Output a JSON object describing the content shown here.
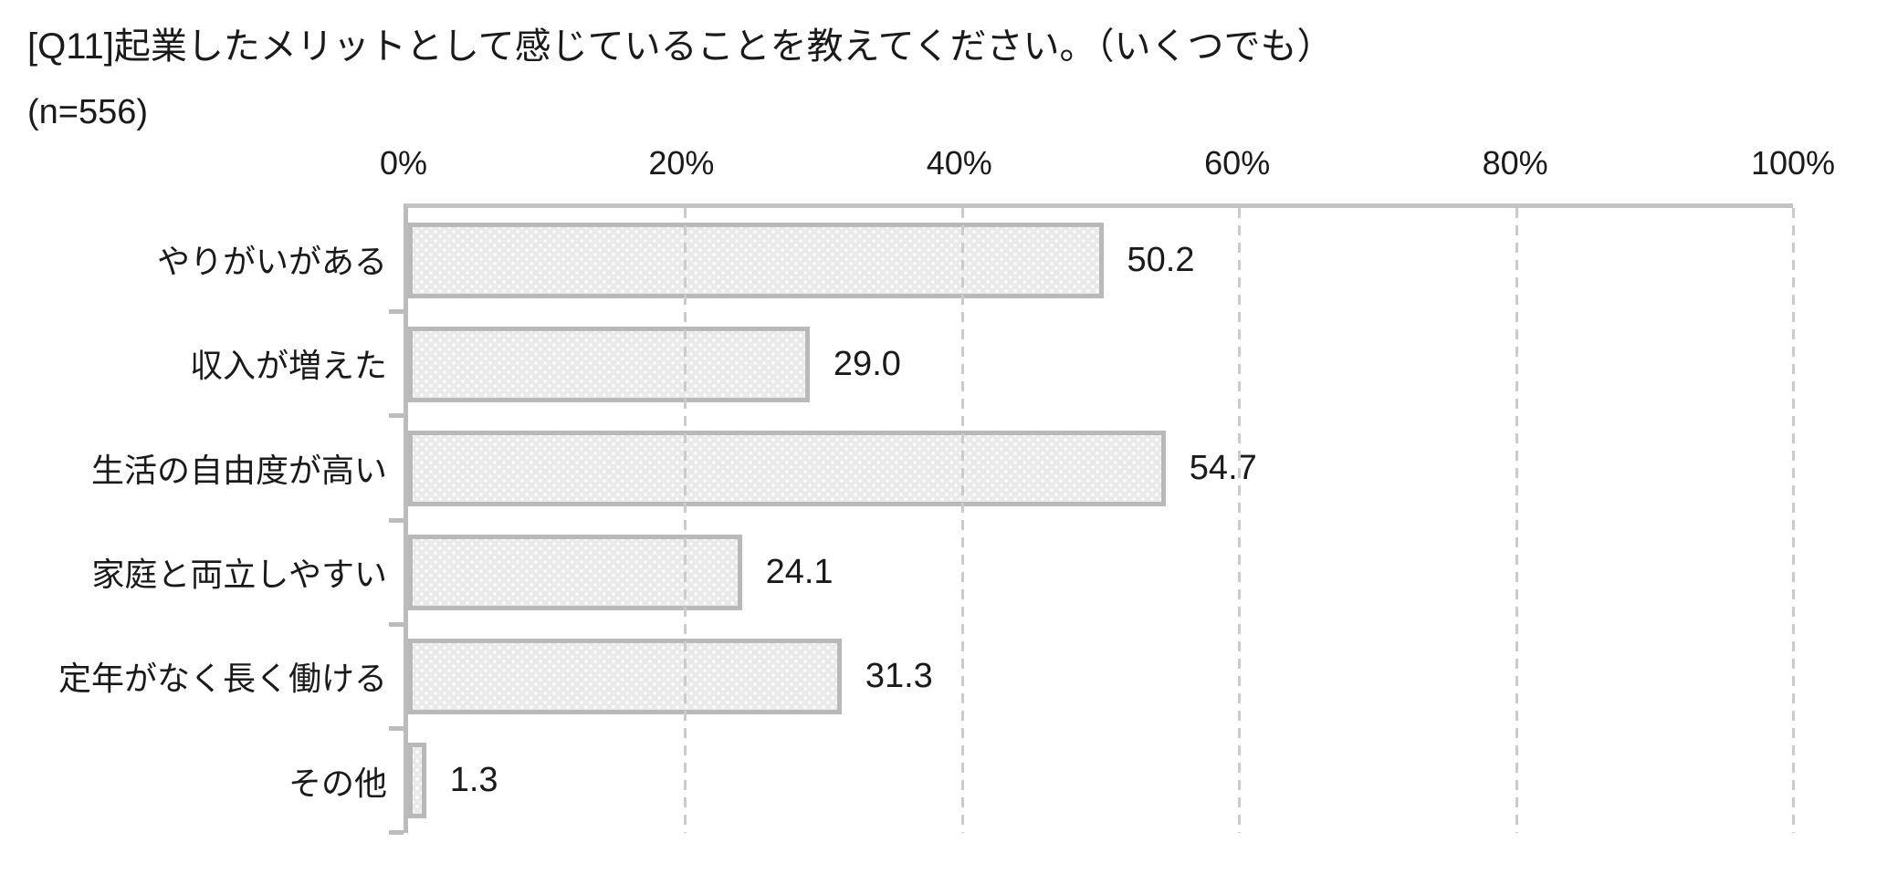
{
  "header": {
    "title": "[Q11]起業したメリットとして感じていることを教えてください。（いくつでも）",
    "sample_size": "(n=556)"
  },
  "chart_data": {
    "type": "bar",
    "orientation": "horizontal",
    "title": "[Q11]起業したメリットとして感じていることを教えてください。（いくつでも）",
    "subtitle": "(n=556)",
    "categories": [
      "やりがいがある",
      "収入が増えた",
      "生活の自由度が高い",
      "家庭と両立しやすい",
      "定年がなく長く働ける",
      "その他"
    ],
    "values": [
      50.2,
      29.0,
      54.7,
      24.1,
      31.3,
      1.3
    ],
    "value_labels": [
      "50.2",
      "29.0",
      "54.7",
      "24.1",
      "31.3",
      "1.3"
    ],
    "x_ticks": [
      "0%",
      "20%",
      "40%",
      "60%",
      "80%",
      "100%"
    ],
    "xlim": [
      0,
      100
    ],
    "x_tick_step": 20,
    "xlabel": "",
    "ylabel": "",
    "legend_position": "none",
    "grid": "vertical-dashed",
    "colors": {
      "bar_fill": "#eaeaea",
      "bar_border": "#b9b9b9",
      "axis": "#bcbcbc",
      "gridline": "#cbcbcb",
      "text": "#1a1a1a",
      "background": "#ffffff"
    }
  }
}
